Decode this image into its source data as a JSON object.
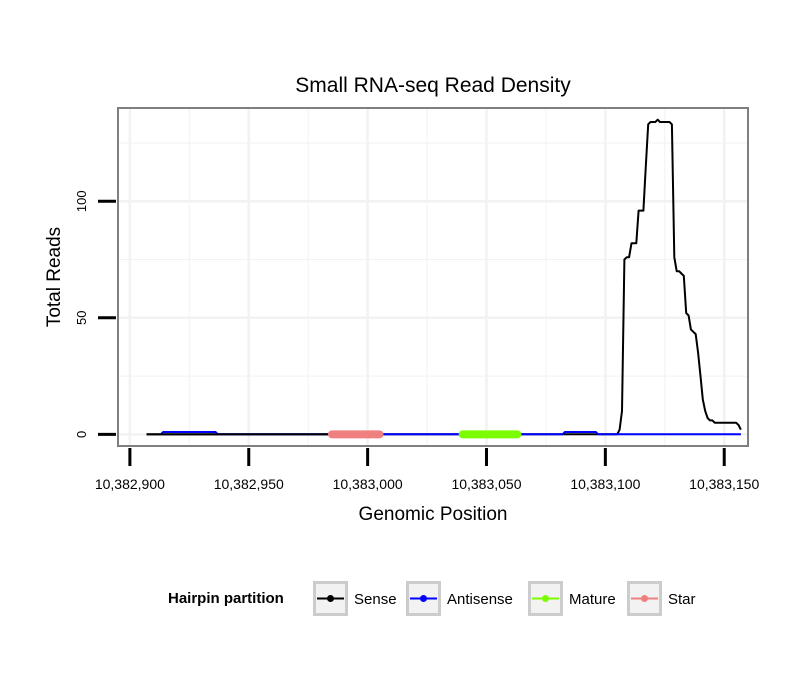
{
  "chart_data": {
    "type": "line",
    "title": "Small RNA-seq Read Density",
    "xlabel": "Genomic Position",
    "ylabel": "Total Reads",
    "xlim": [
      10382895,
      10383160
    ],
    "ylim": [
      -5,
      140
    ],
    "x_ticks": [
      10382900,
      10382950,
      10383000,
      10383050,
      10383100,
      10383150
    ],
    "x_tick_labels": [
      "10,382,900",
      "10,382,950",
      "10,383,000",
      "10,383,050",
      "10,383,100",
      "10,383,150"
    ],
    "y_ticks": [
      0,
      50,
      100
    ],
    "y_tick_labels": [
      "0",
      "50",
      "100"
    ],
    "grid": true,
    "legend": {
      "title": "Hairpin partition",
      "position": "bottom",
      "entries": [
        {
          "label": "Sense",
          "color": "#000000"
        },
        {
          "label": "Antisense",
          "color": "#0000ff"
        },
        {
          "label": "Mature",
          "color": "#7cfc00"
        },
        {
          "label": "Star",
          "color": "#f08080"
        }
      ]
    },
    "series": [
      {
        "name": "Sense",
        "color": "#000000",
        "x": [
          10382907,
          10383105,
          10383106,
          10383107,
          10383108,
          10383109,
          10383110,
          10383111,
          10383112,
          10383113,
          10383114,
          10383115,
          10383116,
          10383117,
          10383118,
          10383119,
          10383120,
          10383121,
          10383122,
          10383123,
          10383124,
          10383125,
          10383126,
          10383127,
          10383128,
          10383129,
          10383130,
          10383131,
          10383132,
          10383133,
          10383134,
          10383135,
          10383136,
          10383137,
          10383138,
          10383139,
          10383140,
          10383141,
          10383142,
          10383143,
          10383144,
          10383145,
          10383146,
          10383147,
          10383148,
          10383149,
          10383150,
          10383151,
          10383152,
          10383153,
          10383154,
          10383155,
          10383156,
          10383157
        ],
        "y": [
          0,
          0,
          2,
          10,
          75,
          76,
          76,
          82,
          82,
          82,
          96,
          96,
          96,
          115,
          133,
          134,
          134,
          134,
          135,
          134,
          134,
          134,
          134,
          134,
          133,
          76,
          70,
          70,
          69,
          68,
          52,
          51,
          45,
          44,
          43,
          35,
          25,
          15,
          10,
          7,
          6,
          6,
          5,
          5,
          5,
          5,
          5,
          5,
          5,
          5,
          5,
          5,
          4,
          2
        ]
      },
      {
        "name": "Antisense",
        "color": "#0000ff",
        "x": [
          10382913,
          10382914,
          10382936,
          10382937,
          10383082,
          10383083,
          10383096,
          10383097,
          10383157
        ],
        "y": [
          0,
          1,
          1,
          0,
          0,
          1,
          1,
          0,
          0
        ]
      }
    ],
    "segments": [
      {
        "name": "Star",
        "color": "#f08080",
        "x_start": 10382985,
        "x_end": 10383005
      },
      {
        "name": "Mature",
        "color": "#7cfc00",
        "x_start": 10383040,
        "x_end": 10383063
      }
    ]
  }
}
